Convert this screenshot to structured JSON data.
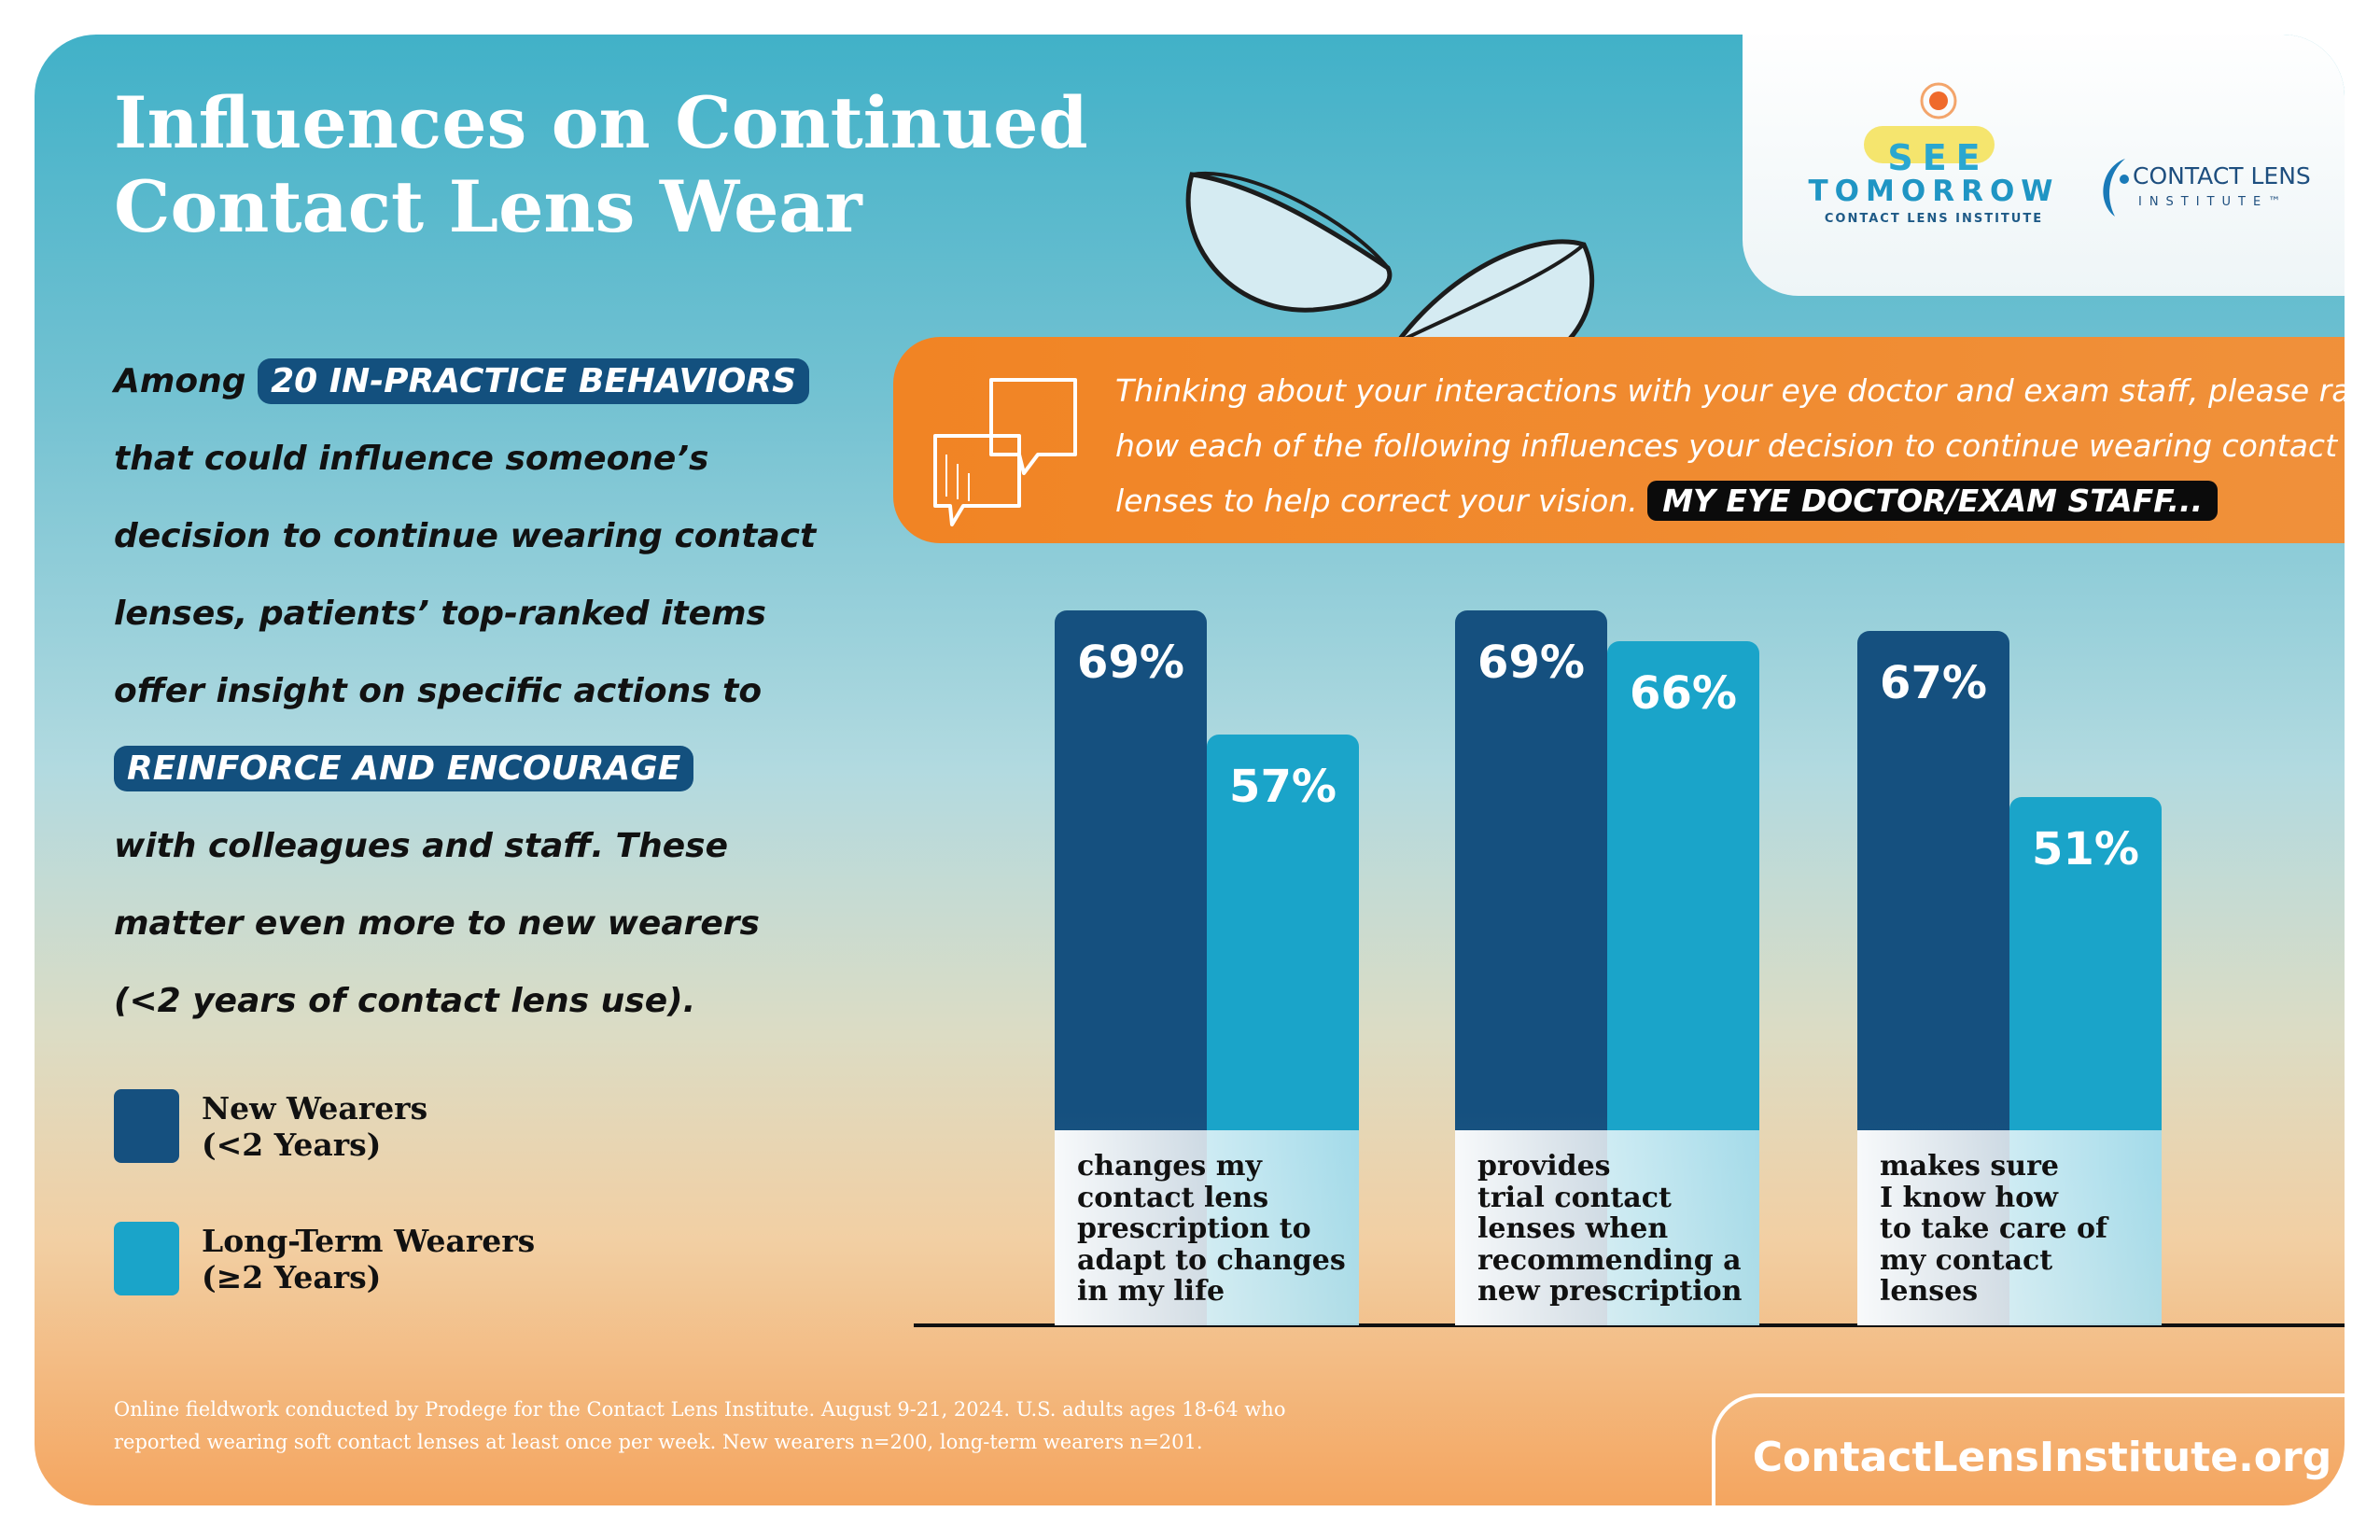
{
  "chart_data": {
    "type": "bar",
    "title": "Influences on Continued\nContact Lens Wear",
    "categories": [
      "changes my\ncontact lens\nprescription to\nadapt to changes\nin my life",
      "provides\ntrial contact\nlenses when\nrecommending a\nnew prescription",
      "makes sure\nI know how\nto take care of\nmy contact\nlenses"
    ],
    "series": [
      {
        "name": "New Wearers\n(<2 Years)",
        "color": "#15507f",
        "values": [
          69,
          69,
          67
        ],
        "value_labels": [
          "69%",
          "69%",
          "67%"
        ]
      },
      {
        "name": "Long-Term Wearers\n(≥2 Years)",
        "color": "#1aa4c9",
        "values": [
          57,
          66,
          51
        ],
        "value_labels": [
          "57%",
          "66%",
          "51%"
        ]
      }
    ]
  },
  "intro": {
    "prefix": "Among",
    "highlight_1": "20 IN-PRACTICE BEHAVIORS",
    "lines_1": [
      "that could influence someone’s",
      "decision to continue wearing contact",
      "lenses, patients’ top-ranked items",
      "offer insight on specific actions to"
    ],
    "highlight_2": "REINFORCE AND ENCOURAGE",
    "lines_2": [
      "with colleagues and staff. These",
      "matter even more to new wearers",
      "(<2 years of contact lens use)."
    ]
  },
  "question": {
    "lines": [
      "Thinking about your interactions with your eye doctor and exam staff, please rate",
      "how each of the following influences your decision to continue wearing contact",
      "lenses to help correct your vision."
    ],
    "badge": "MY EYE DOCTOR/EXAM STAFF..."
  },
  "logos": {
    "see": "SEE",
    "tomorrow": "TOMORROW",
    "see_sub": "CONTACT LENS INSTITUTE",
    "cli_1": "CONTACT LENS",
    "cli_2": "INSTITUTE™"
  },
  "footer": {
    "lines": [
      "Online fieldwork conducted by Prodege for the Contact Lens Institute. August 9-21, 2024. U.S. adults ages 18-64 who",
      "reported wearing soft contact lenses at least once per week. New wearers n=200, long-term wearers n=201."
    ],
    "website": "ContactLensInstitute.org"
  }
}
